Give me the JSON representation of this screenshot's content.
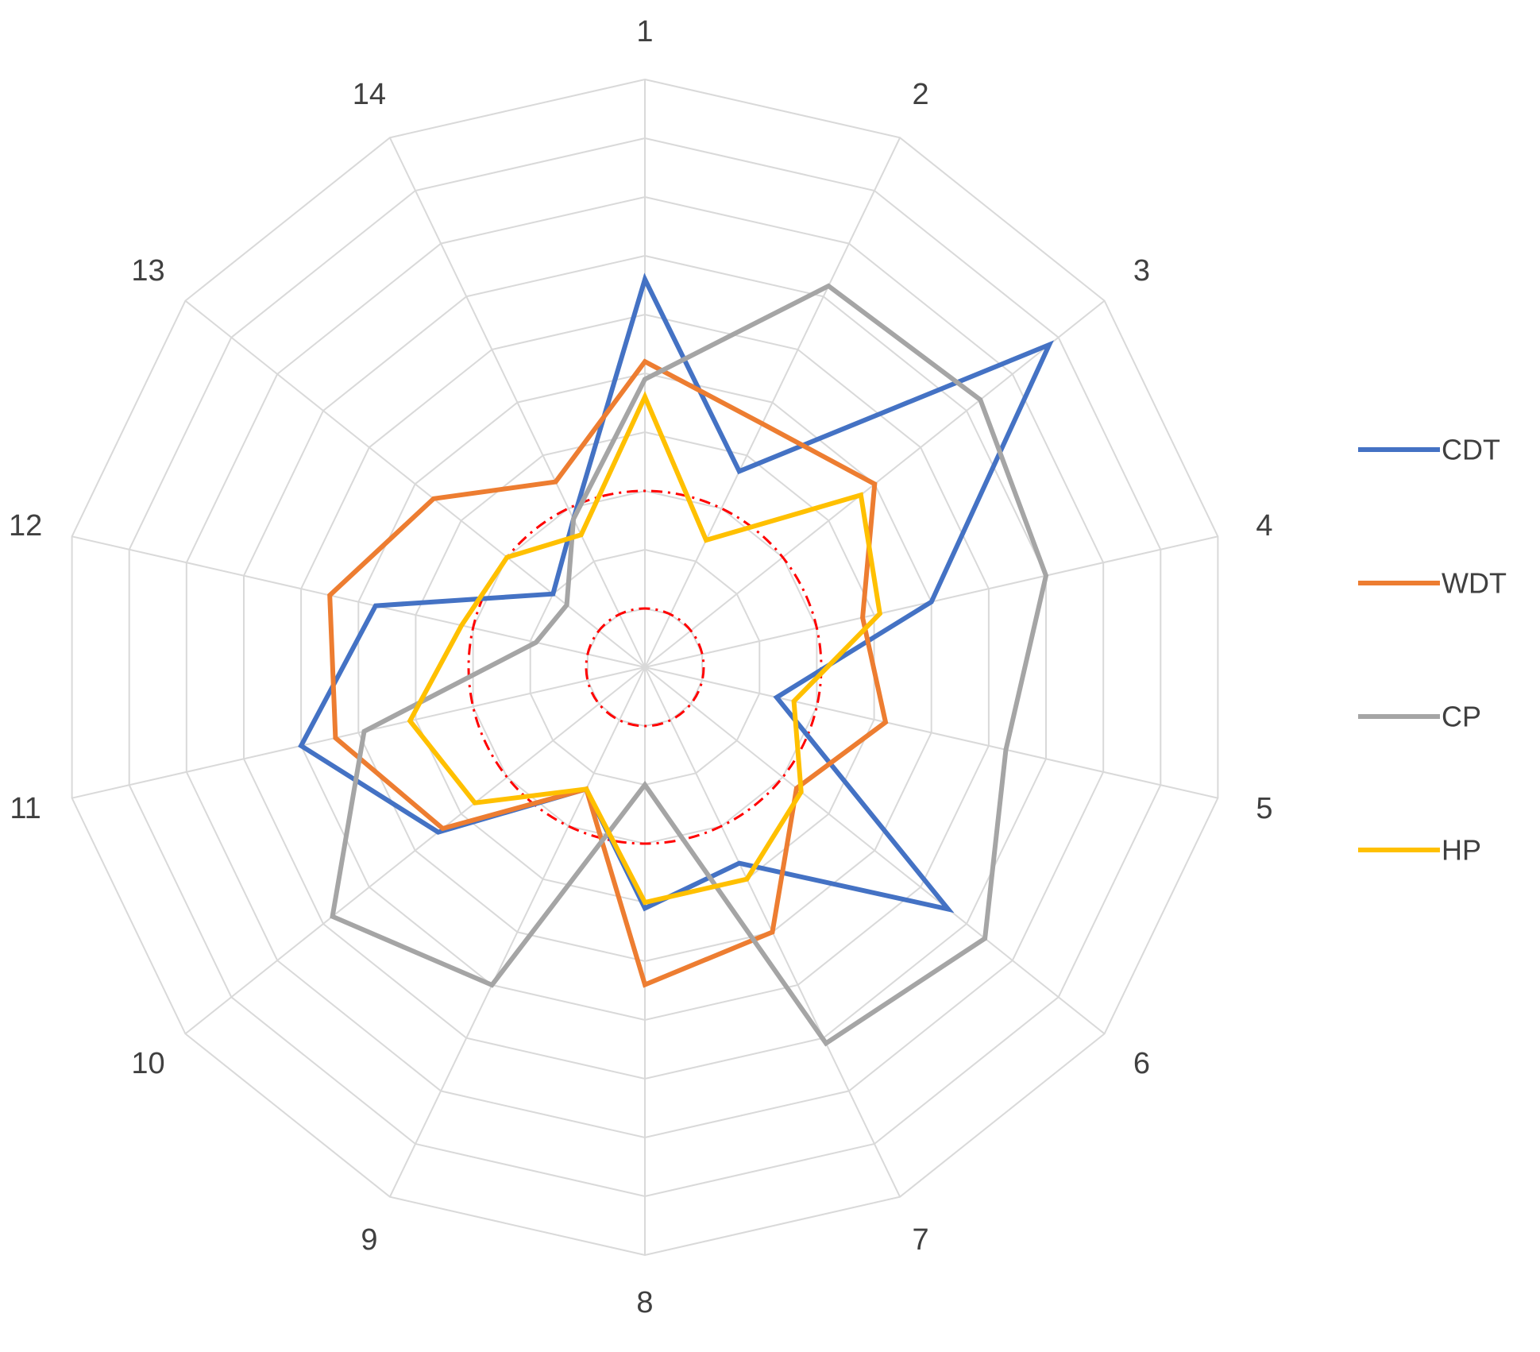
{
  "chart_data": {
    "type": "radar",
    "categories": [
      "1",
      "2",
      "3",
      "4",
      "5",
      "6",
      "7",
      "8",
      "9",
      "10",
      "11",
      "12",
      "13",
      "14"
    ],
    "rmax": 10,
    "rings": 10,
    "reference_circles": [
      1,
      3
    ],
    "series": [
      {
        "name": "CDT",
        "color": "#4472C4",
        "values": [
          6.6,
          3.7,
          8.8,
          5.0,
          2.3,
          6.6,
          3.7,
          4.1,
          2.3,
          4.5,
          6.0,
          4.7,
          2.0,
          2.8
        ]
      },
      {
        "name": "WDT",
        "color": "#ED7D31",
        "values": [
          5.2,
          4.6,
          5.0,
          3.8,
          4.2,
          3.3,
          5.0,
          5.4,
          2.3,
          4.4,
          5.4,
          5.5,
          4.6,
          3.5
        ]
      },
      {
        "name": "CP",
        "color": "#A5A5A5",
        "values": [
          4.9,
          7.2,
          7.3,
          7.0,
          6.3,
          7.4,
          7.1,
          2.0,
          6.0,
          6.8,
          4.9,
          1.9,
          1.7,
          2.8
        ]
      },
      {
        "name": "HP",
        "color": "#FFC000",
        "values": [
          4.6,
          2.4,
          4.7,
          4.1,
          2.6,
          3.4,
          4.0,
          4.0,
          2.3,
          3.7,
          4.1,
          3.2,
          3.0,
          2.5
        ]
      }
    ]
  }
}
